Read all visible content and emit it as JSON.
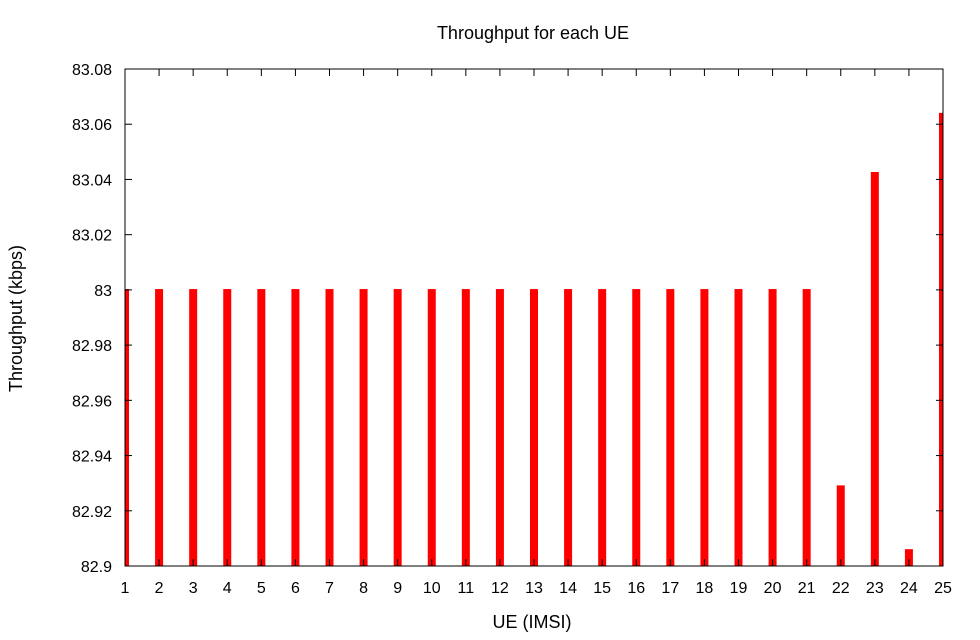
{
  "chart_data": {
    "type": "bar",
    "title": "Throughput for each UE",
    "xlabel": "UE (IMSI)",
    "ylabel": "Throughput (kbps)",
    "categories": [
      "1",
      "2",
      "3",
      "4",
      "5",
      "6",
      "7",
      "8",
      "9",
      "10",
      "11",
      "12",
      "13",
      "14",
      "15",
      "16",
      "17",
      "18",
      "19",
      "20",
      "21",
      "22",
      "23",
      "24",
      "25"
    ],
    "values": [
      83.0003,
      83.0003,
      83.0003,
      83.0003,
      83.0003,
      83.0003,
      83.0003,
      83.0003,
      83.0003,
      83.0003,
      83.0003,
      83.0003,
      83.0003,
      83.0003,
      83.0003,
      83.0003,
      83.0003,
      83.0003,
      83.0003,
      83.0003,
      83.0003,
      82.9292,
      83.0427,
      82.9061,
      83.0641
    ],
    "ylim": [
      82.9,
      83.08
    ],
    "xlim": [
      1,
      25
    ],
    "yticks": [
      "82.9",
      "82.92",
      "82.94",
      "82.96",
      "82.98",
      "83",
      "83.02",
      "83.04",
      "83.06",
      "83.08"
    ],
    "grid": false,
    "legend": "none",
    "bar_color": "#ff0000",
    "axis_color": "#000000"
  }
}
